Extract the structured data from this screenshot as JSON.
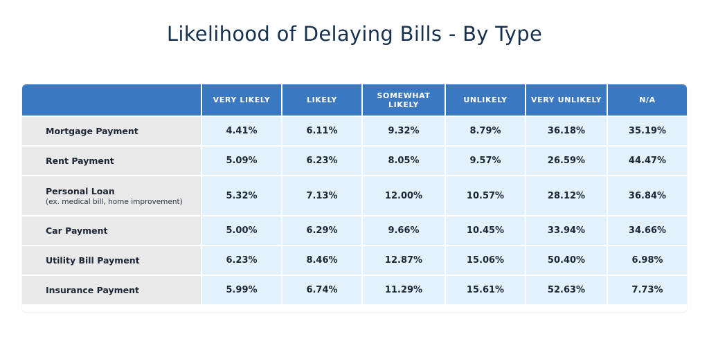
{
  "chart_data": {
    "type": "table",
    "title": "Likelihood of Delaying Bills - By Type",
    "columns": [
      "VERY LIKELY",
      "LIKELY",
      "SOMEWHAT LIKELY",
      "UNLIKELY",
      "VERY UNLIKELY",
      "N/A"
    ],
    "rows": [
      {
        "label": "Mortgage Payment",
        "sublabel": "",
        "values": [
          "4.41%",
          "6.11%",
          "9.32%",
          "8.79%",
          "36.18%",
          "35.19%"
        ]
      },
      {
        "label": "Rent Payment",
        "sublabel": "",
        "values": [
          "5.09%",
          "6.23%",
          "8.05%",
          "9.57%",
          "26.59%",
          "44.47%"
        ]
      },
      {
        "label": "Personal Loan",
        "sublabel": "(ex. medical bill, home improvement)",
        "values": [
          "5.32%",
          "7.13%",
          "12.00%",
          "10.57%",
          "28.12%",
          "36.84%"
        ]
      },
      {
        "label": "Car Payment",
        "sublabel": "",
        "values": [
          "5.00%",
          "6.29%",
          "9.66%",
          "10.45%",
          "33.94%",
          "34.66%"
        ]
      },
      {
        "label": "Utility Bill Payment",
        "sublabel": "",
        "values": [
          "6.23%",
          "8.46%",
          "12.87%",
          "15.06%",
          "50.40%",
          "6.98%"
        ]
      },
      {
        "label": "Insurance Payment",
        "sublabel": "",
        "values": [
          "5.99%",
          "6.74%",
          "11.29%",
          "15.61%",
          "52.63%",
          "7.73%"
        ]
      }
    ],
    "colors": {
      "header": "#3b78c2",
      "cell": "#e3f1fd",
      "row_label": "#e9e9e9",
      "title": "#16304d"
    }
  }
}
